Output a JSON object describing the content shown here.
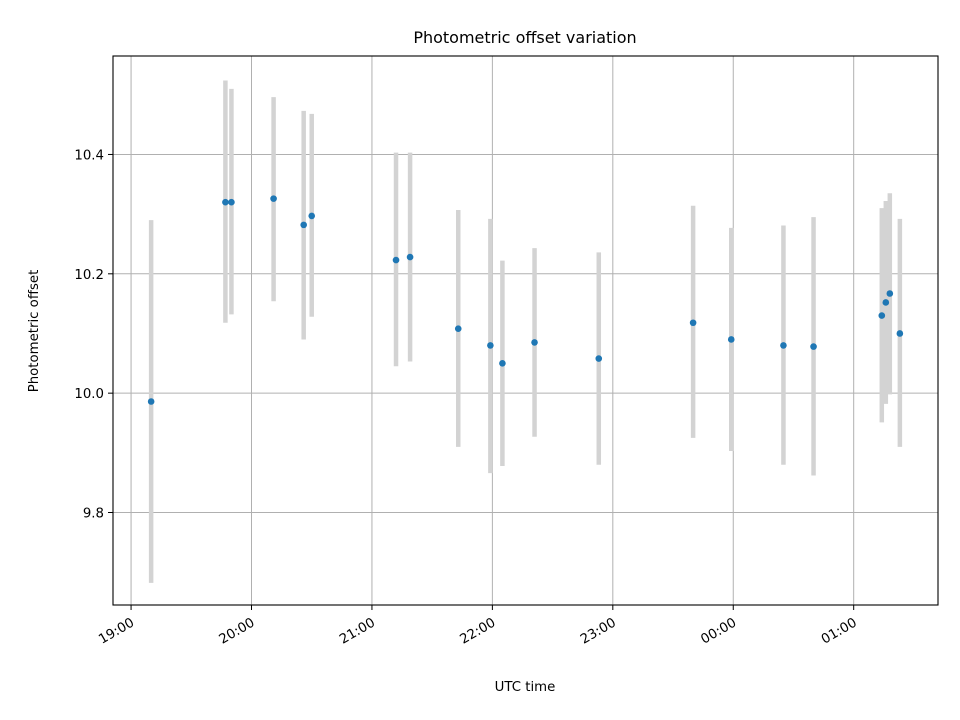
{
  "chart_data": {
    "type": "scatter",
    "title": "Photometric offset variation",
    "xlabel": "UTC time",
    "ylabel": "Photometric offset",
    "x_tick_labels": [
      "19:00",
      "20:00",
      "21:00",
      "22:00",
      "23:00",
      "00:00",
      "01:00"
    ],
    "x_tick_times": [
      "19:00",
      "20:00",
      "21:00",
      "22:00",
      "23:00",
      "24:00",
      "25:00"
    ],
    "xlim": [
      "18:51",
      "25:42"
    ],
    "ylim": [
      9.645,
      10.565
    ],
    "y_ticks": [
      9.8,
      10.0,
      10.2,
      10.4
    ],
    "y_tick_labels": [
      "9.8",
      "10.0",
      "10.2",
      "10.4"
    ],
    "grid": true,
    "colors": {
      "point": "#1f77b4",
      "errorbar": "#d3d3d3",
      "grid": "#b0b0b0",
      "axes": "#000000"
    },
    "points": [
      {
        "x": "19:10",
        "y": 9.986,
        "ylow": 9.682,
        "yhigh": 10.29
      },
      {
        "x": "19:47",
        "y": 10.32,
        "ylow": 10.118,
        "yhigh": 10.524
      },
      {
        "x": "19:50",
        "y": 10.32,
        "ylow": 10.132,
        "yhigh": 10.51
      },
      {
        "x": "20:11",
        "y": 10.326,
        "ylow": 10.154,
        "yhigh": 10.496
      },
      {
        "x": "20:26",
        "y": 10.282,
        "ylow": 10.09,
        "yhigh": 10.473
      },
      {
        "x": "20:30",
        "y": 10.297,
        "ylow": 10.128,
        "yhigh": 10.468
      },
      {
        "x": "21:12",
        "y": 10.223,
        "ylow": 10.045,
        "yhigh": 10.403
      },
      {
        "x": "21:19",
        "y": 10.228,
        "ylow": 10.053,
        "yhigh": 10.403
      },
      {
        "x": "21:43",
        "y": 10.108,
        "ylow": 9.91,
        "yhigh": 10.307
      },
      {
        "x": "21:59",
        "y": 10.08,
        "ylow": 9.866,
        "yhigh": 10.292
      },
      {
        "x": "22:05",
        "y": 10.05,
        "ylow": 9.878,
        "yhigh": 10.222
      },
      {
        "x": "22:21",
        "y": 10.085,
        "ylow": 9.927,
        "yhigh": 10.243
      },
      {
        "x": "22:53",
        "y": 10.058,
        "ylow": 9.88,
        "yhigh": 10.236
      },
      {
        "x": "23:40",
        "y": 10.118,
        "ylow": 9.925,
        "yhigh": 10.314
      },
      {
        "x": "23:59",
        "y": 10.09,
        "ylow": 9.903,
        "yhigh": 10.277
      },
      {
        "x": "24:25",
        "y": 10.08,
        "ylow": 9.88,
        "yhigh": 10.281
      },
      {
        "x": "24:40",
        "y": 10.078,
        "ylow": 9.862,
        "yhigh": 10.295
      },
      {
        "x": "25:14",
        "y": 10.13,
        "ylow": 9.951,
        "yhigh": 10.31
      },
      {
        "x": "25:16",
        "y": 10.152,
        "ylow": 9.982,
        "yhigh": 10.322
      },
      {
        "x": "25:18",
        "y": 10.167,
        "ylow": 9.998,
        "yhigh": 10.335
      },
      {
        "x": "25:23",
        "y": 10.1,
        "ylow": 9.91,
        "yhigh": 10.292
      }
    ]
  }
}
